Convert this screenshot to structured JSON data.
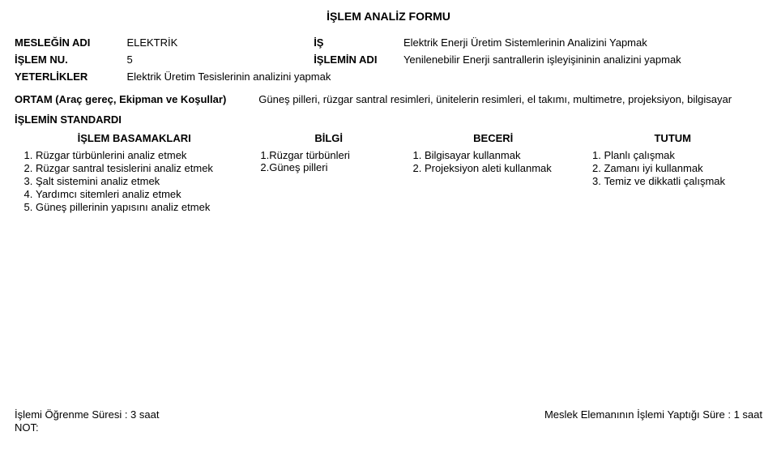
{
  "title": "İŞLEM ANALİZ FORMU",
  "rows": {
    "meslek_label": "MESLEĞİN ADI",
    "meslek_value": "ELEKTRİK",
    "is_label": "İŞ",
    "is_value": "Elektrik Enerji Üretim Sistemlerinin Analizini Yapmak",
    "islem_nu_label": "İŞLEM NU.",
    "islem_nu_value": "5",
    "islemin_adi_label": "İŞLEMİN ADI",
    "islemin_adi_value": "Yenilenebilir Enerji santrallerin işleyişininin analizini yapmak",
    "yeterlikler_label": "YETERLİKLER",
    "yeterlikler_value": "Elektrik Üretim Tesislerinin analizini yapmak"
  },
  "ortam": {
    "label": "ORTAM (Araç gereç, Ekipman ve Koşullar)",
    "value": "Güneş pilleri, rüzgar santral resimleri, ünitelerin resimleri, el takımı, multimetre, projeksiyon, bilgisayar"
  },
  "standard_label": "İŞLEMİN STANDARDI",
  "columns": {
    "basamak": "İŞLEM BASAMAKLARI",
    "bilgi": "BİLGİ",
    "beceri": "BECERİ",
    "tutum": "TUTUM"
  },
  "basamaklar": [
    "Rüzgar türbünlerini analiz etmek",
    "Rüzgar santral tesislerini analiz etmek",
    "Şalt sistemini analiz etmek",
    "Yardımcı sitemleri analiz etmek",
    "Güneş pillerinin yapısını analiz etmek"
  ],
  "bilgi": [
    "1.Rüzgar türbünleri",
    "2.Güneş pilleri"
  ],
  "beceri": [
    "Bilgisayar kullanmak",
    "Projeksiyon aleti kullanmak"
  ],
  "tutum": [
    "Planlı çalışmak",
    "Zamanı iyi kullanmak",
    "Temiz ve dikkatli çalışmak"
  ],
  "footer": {
    "left": "İşlemi Öğrenme Süresi   : 3  saat",
    "right": "Meslek  Elemanının İşlemi Yaptığı Süre  : 1 saat",
    "note": "NOT:"
  },
  "style": {
    "bg": "#ffffff",
    "text": "#000000",
    "font_size_body": 13,
    "font_size_title": 14,
    "col_widths_pct": [
      32,
      20,
      24,
      24
    ]
  }
}
